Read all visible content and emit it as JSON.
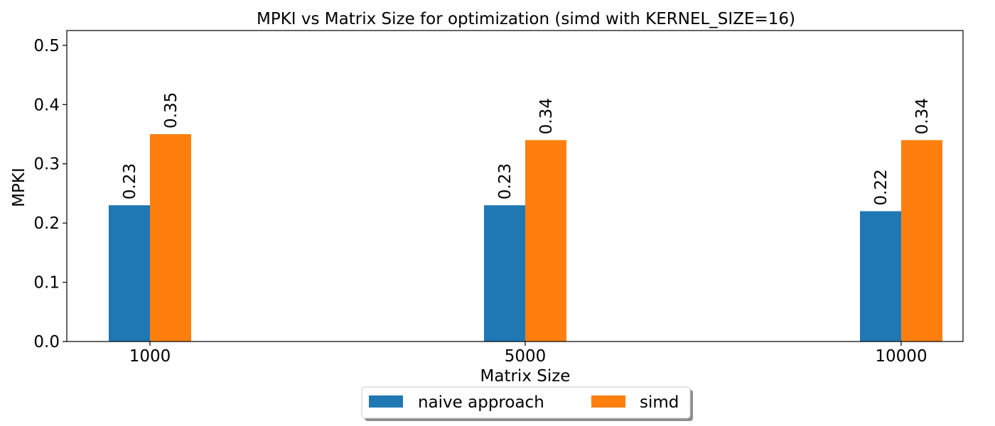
{
  "chart_data": {
    "type": "bar",
    "title": "MPKI vs Matrix Size for optimization (simd with KERNEL_SIZE=16)",
    "xlabel": "Matrix Size",
    "ylabel": "MPKI",
    "categories": [
      "1000",
      "5000",
      "10000"
    ],
    "ylim": [
      0,
      0.525
    ],
    "yticks": [
      "0.0",
      "0.1",
      "0.2",
      "0.3",
      "0.4",
      "0.5"
    ],
    "grid": false,
    "legend_position": "bottom-center",
    "series": [
      {
        "name": "naive approach",
        "color": "#1f77b4",
        "values": [
          0.23,
          0.23,
          0.22
        ],
        "labels": [
          "0.23",
          "0.23",
          "0.22"
        ]
      },
      {
        "name": "simd",
        "color": "#ff7f0e",
        "values": [
          0.35,
          0.34,
          0.34
        ],
        "labels": [
          "0.35",
          "0.34",
          "0.34"
        ]
      }
    ]
  }
}
